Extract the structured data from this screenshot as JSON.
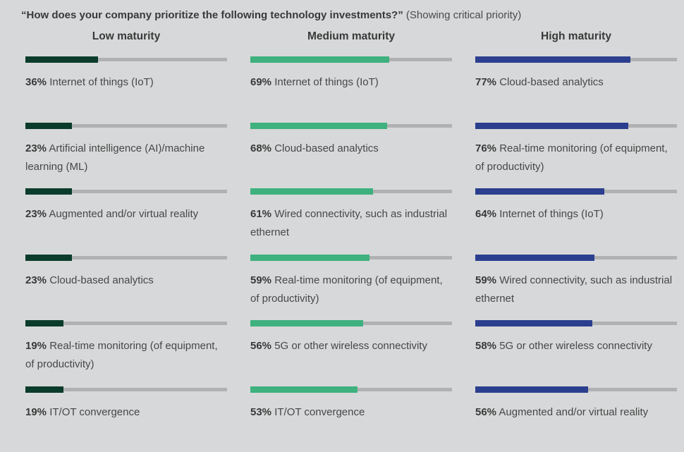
{
  "title": {
    "main": "“How does your company prioritize the following technology investments?”",
    "suffix": "(Showing critical priority)"
  },
  "colors": {
    "bg": "#d7d8d9",
    "track": "#b0b1b2",
    "text": "#3d3d3d",
    "low": "#0b3c2b",
    "medium": "#3eb17e",
    "high": "#2b3f8f"
  },
  "chart_data": {
    "type": "bar",
    "orientation": "horizontal",
    "unit": "percent",
    "xlim": [
      0,
      100
    ],
    "title": "“How does your company prioritize the following technology investments?” (Showing critical priority)",
    "legend_position": "none",
    "grid": false,
    "groups": [
      {
        "name": "Low maturity",
        "color": "#0b3c2b",
        "items": [
          {
            "pct": "36%",
            "value": 36,
            "label": "Internet of things (IoT)"
          },
          {
            "pct": "23%",
            "value": 23,
            "label": "Artificial intelligence (AI)/machine learning (ML)"
          },
          {
            "pct": "23%",
            "value": 23,
            "label": "Augmented and/or virtual reality"
          },
          {
            "pct": "23%",
            "value": 23,
            "label": "Cloud-based analytics"
          },
          {
            "pct": "19%",
            "value": 19,
            "label": "Real-time monitoring (of equipment, of productivity)"
          },
          {
            "pct": "19%",
            "value": 19,
            "label": "IT/OT convergence"
          }
        ]
      },
      {
        "name": "Medium maturity",
        "color": "#3eb17e",
        "items": [
          {
            "pct": "69%",
            "value": 69,
            "label": "Internet of things (IoT)"
          },
          {
            "pct": "68%",
            "value": 68,
            "label": "Cloud-based analytics"
          },
          {
            "pct": "61%",
            "value": 61,
            "label": "Wired connectivity, such as industrial ethernet"
          },
          {
            "pct": "59%",
            "value": 59,
            "label": "Real-time monitoring (of equipment, of productivity)"
          },
          {
            "pct": "56%",
            "value": 56,
            "label": "5G or other wireless connectivity"
          },
          {
            "pct": "53%",
            "value": 53,
            "label": "IT/OT convergence"
          }
        ]
      },
      {
        "name": "High maturity",
        "color": "#2b3f8f",
        "items": [
          {
            "pct": "77%",
            "value": 77,
            "label": "Cloud-based analytics"
          },
          {
            "pct": "76%",
            "value": 76,
            "label": "Real-time monitoring (of equipment, of productivity)"
          },
          {
            "pct": "64%",
            "value": 64,
            "label": "Internet of things (IoT)"
          },
          {
            "pct": "59%",
            "value": 59,
            "label": "Wired connectivity, such as industrial ethernet"
          },
          {
            "pct": "58%",
            "value": 58,
            "label": "5G or other wireless connectivity"
          },
          {
            "pct": "56%",
            "value": 56,
            "label": "Augmented and/or virtual reality"
          }
        ]
      }
    ]
  }
}
